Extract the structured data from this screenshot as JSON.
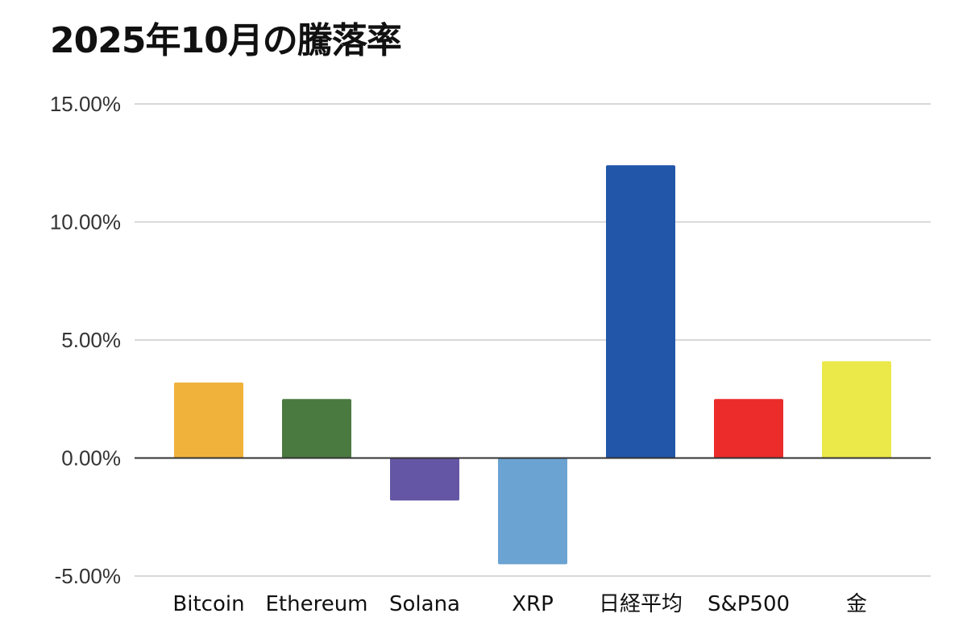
{
  "chart_data": {
    "type": "bar",
    "title": "2025年10月の騰落率",
    "xlabel": "",
    "ylabel": "",
    "categories": [
      "Bitcoin",
      "Ethereum",
      "Solana",
      "XRP",
      "日経平均",
      "S&P500",
      "金"
    ],
    "values": [
      3.2,
      2.5,
      -1.8,
      -4.5,
      12.4,
      2.5,
      4.1
    ],
    "colors": [
      "#F0B23A",
      "#4A7A3F",
      "#6556A5",
      "#6BA3D2",
      "#2156A8",
      "#EC2B2B",
      "#EBE84A"
    ],
    "ylim": [
      -5,
      15
    ],
    "yticks": [
      {
        "value": 15,
        "label": "15.00%"
      },
      {
        "value": 10,
        "label": "10.00%"
      },
      {
        "value": 5,
        "label": "5.00%"
      },
      {
        "value": 0,
        "label": "0.00%"
      },
      {
        "value": -5,
        "label": "-5.00%"
      }
    ],
    "grid": true,
    "legend": "none"
  }
}
